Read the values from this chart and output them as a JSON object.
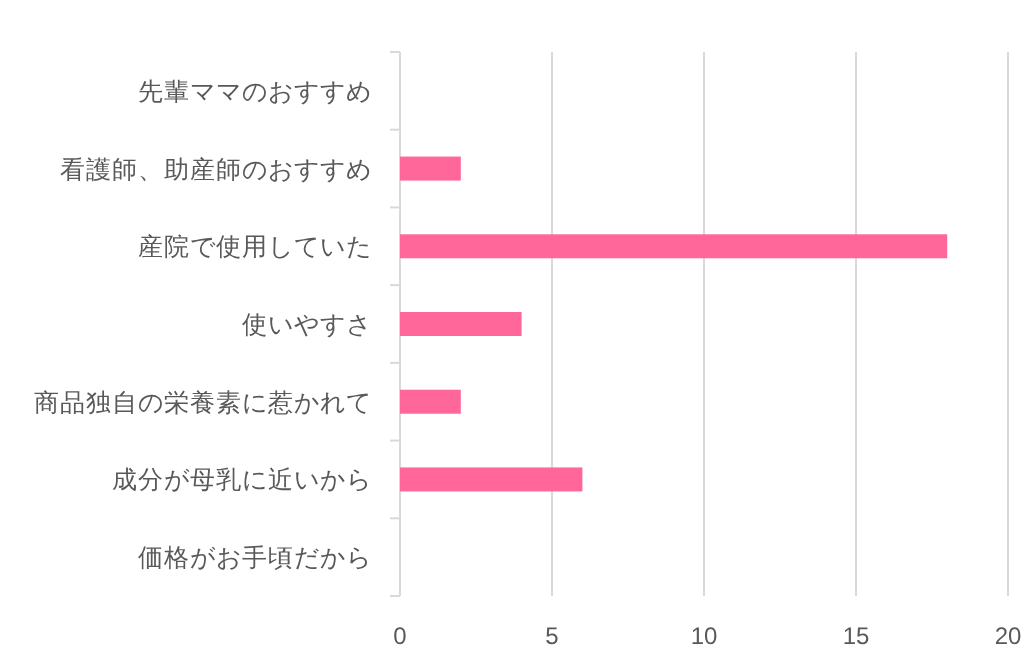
{
  "chart_data": {
    "type": "bar",
    "orientation": "horizontal",
    "categories": [
      "先輩ママのおすすめ",
      "看護師、助産師のおすすめ",
      "産院で使用していた",
      "使いやすさ",
      "商品独自の栄養素に惹かれて",
      "成分が母乳に近いから",
      "価格がお手頃だから"
    ],
    "values": [
      0,
      2,
      18,
      4,
      2,
      6,
      0
    ],
    "color": "#ff6699",
    "xlim": [
      0,
      20
    ],
    "xticks": [
      0,
      5,
      10,
      15,
      20
    ],
    "grid": "x"
  }
}
